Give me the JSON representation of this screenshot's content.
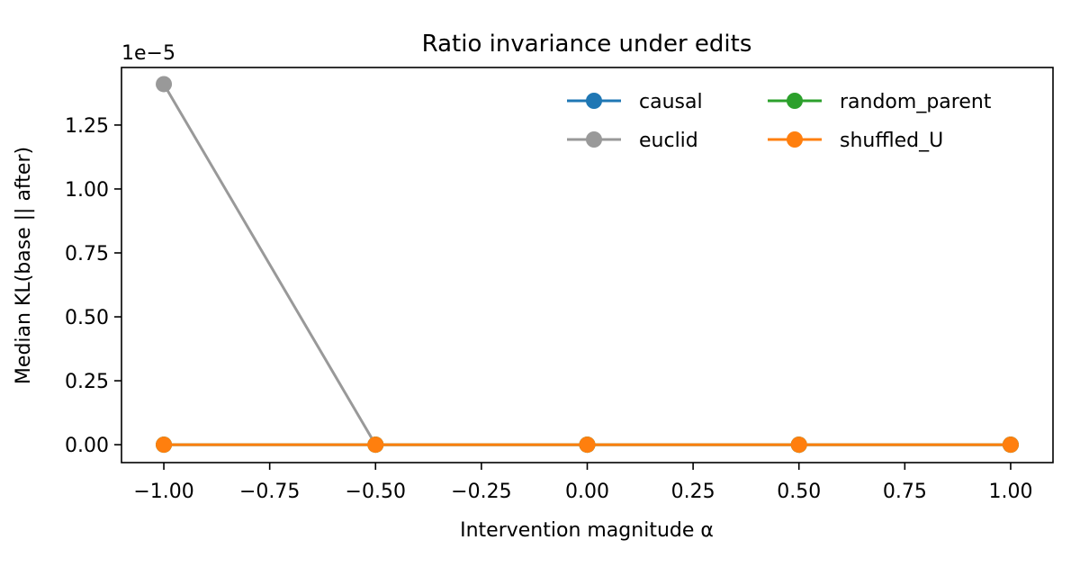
{
  "chart_data": {
    "type": "line",
    "title": "Ratio invariance under edits",
    "xlabel": "Intervention magnitude α",
    "ylabel": "Median KL(base || after)",
    "y_scale_label": "1e−5",
    "x": [
      -1.0,
      -0.5,
      0.0,
      0.5,
      1.0
    ],
    "xlim": [
      -1.1,
      1.1
    ],
    "ylim": [
      -0.07,
      1.475
    ],
    "x_ticks": [
      "−1.00",
      "−0.75",
      "−0.50",
      "−0.25",
      "0.00",
      "0.25",
      "0.50",
      "0.75",
      "1.00"
    ],
    "y_ticks": [
      "0.00",
      "0.25",
      "0.50",
      "0.75",
      "1.00",
      "1.25"
    ],
    "grid": false,
    "legend_position": "top-right",
    "series": [
      {
        "name": "causal",
        "color": "#1f77b4",
        "values": [
          0,
          0,
          0,
          0,
          0
        ]
      },
      {
        "name": "euclid",
        "color": "#999999",
        "values": [
          1.41,
          0,
          0,
          0,
          0
        ]
      },
      {
        "name": "random_parent",
        "color": "#2ca02c",
        "values": [
          0,
          0,
          0,
          0,
          0
        ]
      },
      {
        "name": "shuffled_U",
        "color": "#ff7f0e",
        "values": [
          0,
          0,
          0,
          0,
          0
        ]
      }
    ]
  }
}
